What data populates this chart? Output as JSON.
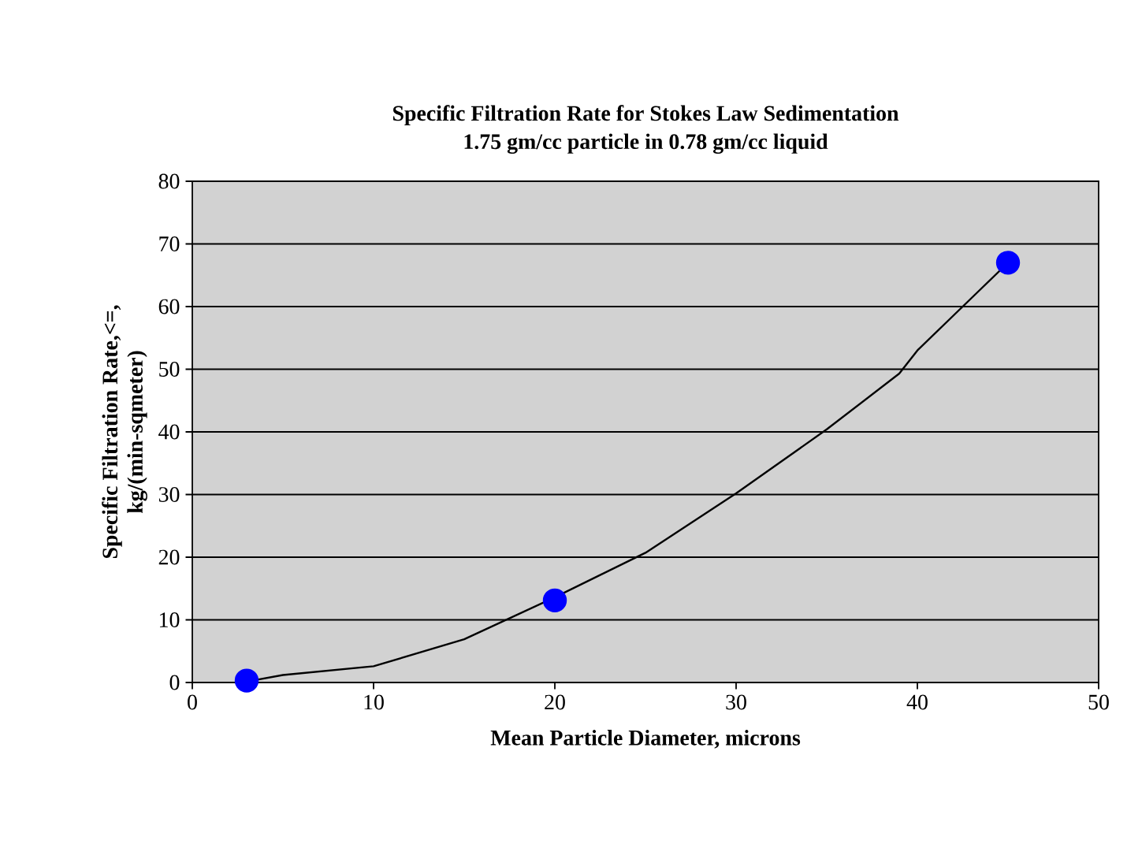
{
  "chart_data": {
    "type": "scatter",
    "title": "Specific Filtration Rate for Stokes Law Sedimentation",
    "subtitle": "1.75 gm/cc particle in 0.78 gm/cc liquid",
    "xlabel": "Mean Particle Diameter, microns",
    "ylabel": "Specific Filtration Rate,<=, kg/(min-sqmeter)",
    "series": [
      {
        "color": "#0000ff",
        "marker": "circle",
        "x": [
          3,
          20,
          45
        ],
        "values": [
          0.3,
          13.1,
          67
        ]
      },
      {
        "type": "line",
        "color": "#000000",
        "marker": "none",
        "line_style": "solid",
        "x": [
          3.3,
          5,
          10,
          15,
          20,
          25,
          30,
          35,
          39,
          40,
          42.5,
          45
        ],
        "values": [
          0.3,
          1.2,
          2.6,
          6.9,
          13.6,
          20.7,
          30.2,
          40.4,
          49.3,
          53,
          60,
          67
        ]
      }
    ],
    "xlim": [
      0,
      50
    ],
    "ylim": [
      0,
      80
    ],
    "xticks": [
      0,
      10,
      20,
      30,
      40,
      50
    ],
    "yticks": [
      0,
      10,
      20,
      30,
      40,
      50,
      60,
      70,
      80
    ],
    "grid": "y"
  }
}
